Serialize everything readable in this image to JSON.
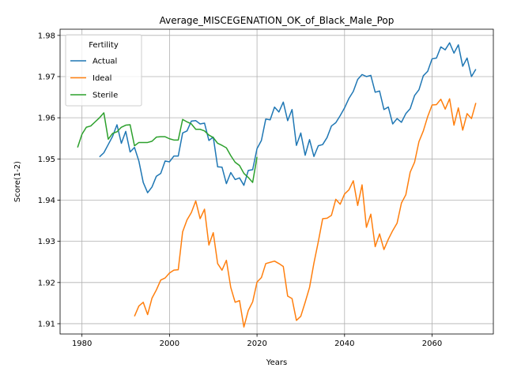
{
  "chart_data": {
    "type": "line",
    "title": "Average_MISCEGENATION_OK_of_Black_Male_Pop",
    "xlabel": "Years",
    "ylabel": "Score(1-2)",
    "xlim": [
      1975,
      2074
    ],
    "ylim": [
      1.9075,
      1.9815
    ],
    "x_ticks": [
      1980,
      2000,
      2020,
      2040,
      2060
    ],
    "x_tick_labels": [
      "1980",
      "2000",
      "2020",
      "2040",
      "2060"
    ],
    "y_ticks": [
      1.91,
      1.92,
      1.93,
      1.94,
      1.95,
      1.96,
      1.97,
      1.98
    ],
    "y_tick_labels": [
      "1.91",
      "1.92",
      "1.93",
      "1.94",
      "1.95",
      "1.96",
      "1.97",
      "1.98"
    ],
    "grid": true,
    "legend": {
      "title": "Fertility",
      "placement": "top-left"
    },
    "series": [
      {
        "name": "Actual",
        "color": "#1f77b4",
        "x": [
          1984,
          1985,
          1986,
          1987,
          1988,
          1989,
          1990,
          1991,
          1992,
          1993,
          1994,
          1995,
          1996,
          1997,
          1998,
          1999,
          2000,
          2001,
          2002,
          2003,
          2004,
          2005,
          2006,
          2007,
          2008,
          2009,
          2010,
          2011,
          2012,
          2013,
          2014,
          2015,
          2016,
          2017,
          2018,
          2019,
          2020,
          2021,
          2022,
          2023,
          2024,
          2025,
          2026,
          2027,
          2028,
          2029,
          2030,
          2031,
          2032,
          2033,
          2034,
          2035,
          2036,
          2037,
          2038,
          2039,
          2040,
          2041,
          2042,
          2043,
          2044,
          2045,
          2046,
          2047,
          2048,
          2049,
          2050,
          2051,
          2052,
          2053,
          2054,
          2055,
          2056,
          2057,
          2058,
          2059,
          2060,
          2061,
          2062,
          2063,
          2064,
          2065,
          2066,
          2067,
          2068,
          2069,
          2070
        ],
        "y": [
          1.9505,
          1.9515,
          1.9535,
          1.9555,
          1.9583,
          1.9538,
          1.9567,
          1.9517,
          1.9528,
          1.9495,
          1.9443,
          1.9418,
          1.9432,
          1.9458,
          1.9465,
          1.9495,
          1.9493,
          1.9507,
          1.9507,
          1.9563,
          1.9568,
          1.9592,
          1.9593,
          1.9585,
          1.9587,
          1.9545,
          1.9553,
          1.9481,
          1.948,
          1.944,
          1.9467,
          1.945,
          1.9454,
          1.9436,
          1.9472,
          1.9474,
          1.9525,
          1.9545,
          1.9597,
          1.9595,
          1.9626,
          1.9614,
          1.9638,
          1.9593,
          1.962,
          1.9533,
          1.9563,
          1.9509,
          1.9547,
          1.9506,
          1.9532,
          1.9535,
          1.9552,
          1.958,
          1.9588,
          1.9605,
          1.9624,
          1.9647,
          1.9664,
          1.9693,
          1.9705,
          1.97,
          1.9703,
          1.9662,
          1.9665,
          1.962,
          1.9626,
          1.9585,
          1.9598,
          1.9589,
          1.961,
          1.9622,
          1.9654,
          1.9668,
          1.9702,
          1.9713,
          1.9743,
          1.9745,
          1.9772,
          1.9765,
          1.9782,
          1.9757,
          1.9777,
          1.9725,
          1.9745,
          1.97,
          1.9718
        ]
      },
      {
        "name": "Ideal",
        "color": "#ff7f0e",
        "x": [
          1992,
          1993,
          1994,
          1995,
          1996,
          1997,
          1998,
          1999,
          2000,
          2001,
          2002,
          2003,
          2004,
          2005,
          2006,
          2007,
          2008,
          2009,
          2010,
          2011,
          2012,
          2013,
          2014,
          2015,
          2016,
          2017,
          2018,
          2019,
          2020,
          2021,
          2022,
          2023,
          2024,
          2025,
          2026,
          2027,
          2028,
          2029,
          2030,
          2031,
          2032,
          2033,
          2034,
          2035,
          2036,
          2037,
          2038,
          2039,
          2040,
          2041,
          2042,
          2043,
          2044,
          2045,
          2046,
          2047,
          2048,
          2049,
          2050,
          2051,
          2052,
          2053,
          2054,
          2055,
          2056,
          2057,
          2058,
          2059,
          2060,
          2061,
          2062,
          2063,
          2064,
          2065,
          2066,
          2067,
          2068,
          2069,
          2070
        ],
        "y": [
          1.9118,
          1.9143,
          1.9152,
          1.9122,
          1.9162,
          1.9182,
          1.9206,
          1.9211,
          1.9223,
          1.923,
          1.9231,
          1.9323,
          1.9352,
          1.937,
          1.9398,
          1.9355,
          1.9378,
          1.9291,
          1.9321,
          1.9246,
          1.923,
          1.9254,
          1.9188,
          1.9152,
          1.9156,
          1.9092,
          1.9132,
          1.9153,
          1.9201,
          1.9212,
          1.9246,
          1.9249,
          1.9252,
          1.9246,
          1.9239,
          1.9167,
          1.9161,
          1.9108,
          1.9118,
          1.9152,
          1.9188,
          1.9247,
          1.9299,
          1.9355,
          1.9356,
          1.9363,
          1.9402,
          1.939,
          1.9415,
          1.9425,
          1.9447,
          1.9387,
          1.9437,
          1.9334,
          1.9366,
          1.9287,
          1.9318,
          1.928,
          1.9305,
          1.9326,
          1.9344,
          1.9393,
          1.9413,
          1.9468,
          1.9492,
          1.9542,
          1.9568,
          1.9603,
          1.9631,
          1.9632,
          1.9645,
          1.9621,
          1.9646,
          1.9582,
          1.9624,
          1.957,
          1.961,
          1.9598,
          1.9636
        ]
      },
      {
        "name": "Sterile",
        "color": "#2ca02c",
        "x": [
          1979,
          1980,
          1981,
          1982,
          1983,
          1984,
          1985,
          1986,
          1987,
          1988,
          1989,
          1990,
          1991,
          1992,
          1993,
          1994,
          1995,
          1996,
          1997,
          1998,
          1999,
          2000,
          2001,
          2002,
          2003,
          2004,
          2005,
          2006,
          2007,
          2008,
          2009,
          2010,
          2011,
          2012,
          2013,
          2014,
          2015,
          2016,
          2017,
          2018,
          2019,
          2020
        ],
        "y": [
          1.9528,
          1.956,
          1.9577,
          1.958,
          1.959,
          1.96,
          1.9612,
          1.9548,
          1.9562,
          1.9566,
          1.9577,
          1.9582,
          1.9583,
          1.9532,
          1.954,
          1.954,
          1.954,
          1.9543,
          1.9553,
          1.9554,
          1.9554,
          1.9549,
          1.9546,
          1.9546,
          1.9596,
          1.959,
          1.9585,
          1.9572,
          1.9572,
          1.9568,
          1.9558,
          1.9552,
          1.9538,
          1.9533,
          1.9527,
          1.9508,
          1.9492,
          1.9484,
          1.9465,
          1.9455,
          1.9443,
          1.9505
        ]
      }
    ]
  }
}
